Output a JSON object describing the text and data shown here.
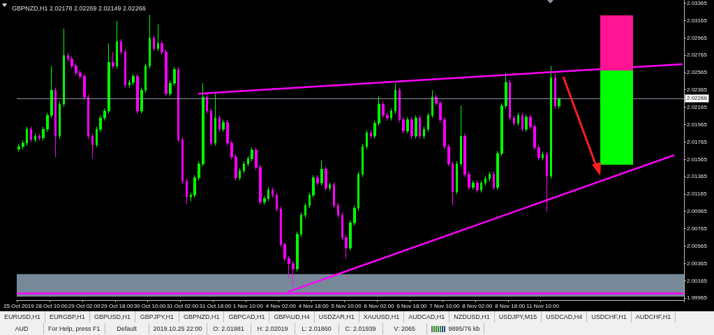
{
  "chart_data": {
    "type": "candlestick",
    "title": "GBPNZD,H1 2.02178 2.02269 2.02149 2.02266",
    "categories": [
      "25 Oct 2019",
      null,
      null,
      null,
      null,
      null,
      null,
      null,
      "28 Oct 10:00",
      null,
      null,
      null,
      null,
      null,
      null,
      null,
      "29 Oct 02:00",
      null,
      null,
      null,
      null,
      null,
      null,
      null,
      "29 Oct 18:00",
      null,
      null,
      null,
      null,
      null,
      null,
      null,
      "30 Oct 10:00",
      null,
      null,
      null,
      null,
      null,
      null,
      null,
      "31 Oct 02:00",
      null,
      null,
      null,
      null,
      null,
      null,
      null,
      "31 Oct 18:00",
      null,
      null,
      null,
      null,
      null,
      null,
      null,
      "1 Nov 10:00",
      null,
      null,
      null,
      null,
      null,
      null,
      null,
      "4 Nov 02:00",
      null,
      null,
      null,
      null,
      null,
      null,
      null,
      "4 Nov 18:00",
      null,
      null,
      null,
      null,
      null,
      null,
      null,
      "5 Nov 10:00",
      null,
      null,
      null,
      null,
      null,
      null,
      null,
      "6 Nov 02:00",
      null,
      null,
      null,
      null,
      null,
      null,
      null,
      "6 Nov 18:00",
      null,
      null,
      null,
      null,
      null,
      null,
      null,
      "7 Nov 10:00",
      null,
      null,
      null,
      null,
      null,
      null,
      null,
      "8 Nov 02:00",
      null,
      null,
      null,
      null,
      null,
      null,
      null,
      "8 Nov 18:00",
      null,
      null,
      null,
      null,
      null,
      null,
      null,
      "11 Nov 10:00",
      null,
      null,
      null,
      null,
      null,
      null,
      null,
      null,
      null,
      null,
      null,
      null,
      null,
      null,
      null,
      null,
      null,
      null,
      null,
      null,
      null,
      null,
      null,
      null,
      null,
      null,
      null,
      null,
      null,
      null,
      null,
      null,
      null,
      null
    ],
    "ylim": [
      1.9994,
      2.034
    ],
    "yticks": [
      2.03365,
      2.03165,
      2.02965,
      2.02765,
      2.02565,
      2.02365,
      2.02165,
      2.01965,
      2.01765,
      2.01565,
      2.01365,
      2.01165,
      2.00965,
      2.00765,
      2.00565,
      2.00365,
      2.00165,
      1.99965
    ],
    "grid": false,
    "marker": "none",
    "ref_lines": [
      {
        "axis": "y",
        "value": 2.02266,
        "label": "2.02266",
        "color": "#8a96a8"
      },
      {
        "axis": "y",
        "value": 2.0002,
        "color": "#ff00ff"
      }
    ],
    "bands": [
      {
        "axis": "y",
        "from": 1.9998,
        "to": 2.0024,
        "color": "#778899"
      }
    ],
    "series": [
      {
        "colors": [
          "#00ff00",
          "#00ff00",
          "#00ff00",
          "#ff00ff",
          "#00ff00",
          "#ff00ff",
          "#00ff00",
          "#00ff00",
          "#00ff00",
          "#ff00ff",
          "#00ff00",
          "#00ff00",
          "#ff00ff",
          "#ff00ff",
          "#ff00ff",
          "#ff00ff",
          "#ff00ff",
          "#ff00ff",
          "#ff00ff",
          "#00ff00",
          "#00ff00",
          "#00ff00",
          "#00ff00",
          "#ff00ff",
          "#00ff00",
          "#ff00ff",
          "#ff00ff",
          "#00ff00",
          "#00ff00",
          "#ff00ff",
          "#00ff00",
          "#00ff00",
          "#00ff00",
          "#ff00ff",
          "#00ff00",
          "#ff00ff",
          "#ff00ff",
          "#00ff00",
          "#00ff00",
          "#ff00ff",
          "#ff00ff",
          "#ff00ff",
          "#00ff00",
          "#00ff00",
          "#00ff00",
          "#00ff00",
          "#ff00ff",
          "#ff00ff",
          "#00ff00",
          "#ff00ff",
          "#00ff00",
          "#ff00ff",
          "#ff00ff",
          "#ff00ff",
          "#00ff00",
          "#00ff00",
          "#00ff00",
          "#00ff00",
          "#ff00ff",
          "#ff00ff",
          "#00ff00",
          "#00ff00",
          "#ff00ff",
          "#ff00ff",
          "#ff00ff",
          "#ff00ff",
          "#ff00ff",
          "#ff00ff",
          "#00ff00",
          "#00ff00",
          "#00ff00",
          "#00ff00",
          "#00ff00",
          "#ff00ff",
          "#00ff00",
          "#ff00ff",
          "#00ff00",
          "#ff00ff",
          "#ff00ff",
          "#ff00ff",
          "#ff00ff",
          "#00ff00",
          "#00ff00",
          "#00ff00",
          "#00ff00",
          "#00ff00",
          "#ff00ff",
          "#00ff00",
          "#00ff00",
          "#ff00ff",
          "#ff00ff",
          "#00ff00",
          "#00ff00",
          "#ff00ff",
          "#ff00ff",
          "#00ff00",
          "#ff00ff",
          "#00ff00",
          "#ff00ff",
          "#00ff00",
          "#00ff00",
          "#00ff00",
          "#ff00ff",
          "#ff00ff",
          "#ff00ff",
          "#ff00ff",
          "#ff00ff",
          "#00ff00",
          "#00ff00",
          "#ff00ff",
          "#ff00ff",
          "#00ff00",
          "#ff00ff",
          "#00ff00",
          "#00ff00",
          "#00ff00",
          "#ff00ff",
          "#00ff00",
          "#00ff00",
          "#00ff00",
          "#ff00ff",
          "#ff00ff",
          "#00ff00",
          "#ff00ff",
          "#00ff00",
          "#ff00ff",
          "#ff00ff",
          "#ff00ff",
          "#00ff00",
          "#ff00ff",
          "#00ff00",
          "#ff00ff",
          "#00ff00",
          null,
          null,
          null,
          null,
          null,
          null,
          null,
          null,
          null,
          null,
          null,
          null,
          null,
          null,
          null,
          null,
          null,
          null,
          null,
          null,
          null,
          null,
          null,
          null,
          null,
          null,
          null,
          null,
          null,
          null
        ],
        "ohlc": [
          [
            2.0168,
            2.0174,
            2.0165,
            2.0171
          ],
          [
            2.0171,
            2.0178,
            2.0168,
            2.0175
          ],
          [
            2.0175,
            2.0194,
            2.0172,
            2.0191
          ],
          [
            2.0191,
            2.0194,
            2.0176,
            2.0179
          ],
          [
            2.0179,
            2.0186,
            2.0176,
            2.0183
          ],
          [
            2.0183,
            2.0186,
            2.0178,
            2.0181
          ],
          [
            2.0181,
            2.0194,
            2.0178,
            2.0191
          ],
          [
            2.0191,
            2.021,
            2.0188,
            2.0207
          ],
          [
            2.0207,
            2.0264,
            2.0204,
            2.0236
          ],
          [
            2.0236,
            2.0239,
            2.0159,
            2.0183
          ],
          [
            2.0183,
            2.0223,
            2.018,
            2.022
          ],
          [
            2.022,
            2.0307,
            2.0217,
            2.0276
          ],
          [
            2.0276,
            2.0279,
            2.0269,
            2.0272
          ],
          [
            2.0272,
            2.0275,
            2.0261,
            2.0264
          ],
          [
            2.0264,
            2.0267,
            2.0253,
            2.0256
          ],
          [
            2.0256,
            2.0259,
            2.0249,
            2.0252
          ],
          [
            2.0252,
            2.0255,
            2.0225,
            2.0228
          ],
          [
            2.0228,
            2.0231,
            2.018,
            2.0183
          ],
          [
            2.0183,
            2.0186,
            2.0157,
            2.0173
          ],
          [
            2.0173,
            2.0194,
            2.017,
            2.0191
          ],
          [
            2.0191,
            2.0207,
            2.0188,
            2.0204
          ],
          [
            2.0204,
            2.0215,
            2.0201,
            2.0212
          ],
          [
            2.0212,
            2.029,
            2.0209,
            2.0268
          ],
          [
            2.0268,
            2.028,
            2.0261,
            2.0264
          ],
          [
            2.0264,
            2.0316,
            2.0261,
            2.0292
          ],
          [
            2.0292,
            2.0295,
            2.0277,
            2.028
          ],
          [
            2.028,
            2.0283,
            2.0239,
            2.0242
          ],
          [
            2.0242,
            2.0248,
            2.0239,
            2.0245
          ],
          [
            2.0245,
            2.0255,
            2.0242,
            2.0252
          ],
          [
            2.0252,
            2.0255,
            2.0209,
            2.0212
          ],
          [
            2.0212,
            2.0239,
            2.0209,
            2.0236
          ],
          [
            2.0236,
            2.0267,
            2.0233,
            2.0264
          ],
          [
            2.0264,
            2.0323,
            2.0261,
            2.0296
          ],
          [
            2.0296,
            2.0299,
            2.0281,
            2.0284
          ],
          [
            2.0284,
            2.0312,
            2.0281,
            2.029
          ],
          [
            2.029,
            2.0293,
            2.0277,
            2.028
          ],
          [
            2.028,
            2.0283,
            2.0229,
            2.0232
          ],
          [
            2.0232,
            2.0247,
            2.0229,
            2.0244
          ],
          [
            2.0244,
            2.0263,
            2.0241,
            2.026
          ],
          [
            2.026,
            2.0263,
            2.0176,
            2.0179
          ],
          [
            2.0179,
            2.0182,
            2.0128,
            2.0131
          ],
          [
            2.0131,
            2.0134,
            2.0105,
            2.0113
          ],
          [
            2.0113,
            2.0118,
            2.0108,
            2.0115
          ],
          [
            2.0115,
            2.0138,
            2.0112,
            2.0135
          ],
          [
            2.0135,
            2.0154,
            2.0132,
            2.0151
          ],
          [
            2.0151,
            2.0244,
            2.0148,
            2.0228
          ],
          [
            2.0228,
            2.0231,
            2.0209,
            2.0212
          ],
          [
            2.0212,
            2.0215,
            2.0172,
            2.0175
          ],
          [
            2.0175,
            2.0232,
            2.0172,
            2.0204
          ],
          [
            2.0204,
            2.0207,
            2.0188,
            2.0191
          ],
          [
            2.0191,
            2.0202,
            2.0188,
            2.0199
          ],
          [
            2.0199,
            2.0202,
            2.0172,
            2.0175
          ],
          [
            2.0175,
            2.0178,
            2.0156,
            2.0159
          ],
          [
            2.0159,
            2.0162,
            2.0132,
            2.0135
          ],
          [
            2.0135,
            2.0146,
            2.0132,
            2.0143
          ],
          [
            2.0143,
            2.0154,
            2.014,
            2.0151
          ],
          [
            2.0151,
            2.016,
            2.0148,
            2.0157
          ],
          [
            2.0157,
            2.017,
            2.0154,
            2.0167
          ],
          [
            2.0167,
            2.017,
            2.0144,
            2.0147
          ],
          [
            2.0147,
            2.015,
            2.0104,
            2.0107
          ],
          [
            2.0107,
            2.0114,
            2.0104,
            2.0111
          ],
          [
            2.0111,
            2.0124,
            2.0108,
            2.0121
          ],
          [
            2.0121,
            2.0124,
            2.0112,
            2.0115
          ],
          [
            2.0115,
            2.0118,
            2.0096,
            2.0099
          ],
          [
            2.0099,
            2.0102,
            2.0055,
            2.0058
          ],
          [
            2.0058,
            2.0061,
            2.0039,
            2.0042
          ],
          [
            2.0042,
            2.0045,
            2.002,
            2.0036
          ],
          [
            2.0036,
            2.0039,
            2.001,
            2.003
          ],
          [
            2.003,
            2.0073,
            2.0027,
            2.007
          ],
          [
            2.007,
            2.0095,
            2.0067,
            2.0092
          ],
          [
            2.0092,
            2.0106,
            2.0089,
            2.0103
          ],
          [
            2.0103,
            2.0118,
            2.01,
            2.0115
          ],
          [
            2.0115,
            2.0138,
            2.0112,
            2.0135
          ],
          [
            2.0135,
            2.0138,
            2.0126,
            2.0129
          ],
          [
            2.0129,
            2.0155,
            2.0126,
            2.0145
          ],
          [
            2.0145,
            2.0148,
            2.012,
            2.0123
          ],
          [
            2.0123,
            2.013,
            2.012,
            2.0127
          ],
          [
            2.0127,
            2.013,
            2.01,
            2.0103
          ],
          [
            2.0103,
            2.0106,
            2.0089,
            2.0092
          ],
          [
            2.0092,
            2.0095,
            2.0063,
            2.0066
          ],
          [
            2.0066,
            2.0069,
            2.0042,
            2.0054
          ],
          [
            2.0054,
            2.0086,
            2.0051,
            2.0083
          ],
          [
            2.0083,
            2.0103,
            2.008,
            2.01
          ],
          [
            2.01,
            2.0142,
            2.0097,
            2.0139
          ],
          [
            2.0139,
            2.0174,
            2.0136,
            2.0171
          ],
          [
            2.0171,
            2.019,
            2.0168,
            2.0187
          ],
          [
            2.0187,
            2.019,
            2.018,
            2.0183
          ],
          [
            2.0183,
            2.0201,
            2.018,
            2.0198
          ],
          [
            2.0198,
            2.0229,
            2.0195,
            2.022
          ],
          [
            2.022,
            2.0223,
            2.0204,
            2.0207
          ],
          [
            2.0207,
            2.021,
            2.0201,
            2.0204
          ],
          [
            2.0204,
            2.0215,
            2.0201,
            2.0212
          ],
          [
            2.0212,
            2.0244,
            2.0209,
            2.0236
          ],
          [
            2.0236,
            2.0239,
            2.0199,
            2.0202
          ],
          [
            2.0202,
            2.0205,
            2.0186,
            2.0189
          ],
          [
            2.0189,
            2.0205,
            2.0186,
            2.0202
          ],
          [
            2.0202,
            2.0205,
            2.018,
            2.0183
          ],
          [
            2.0183,
            2.0207,
            2.018,
            2.0204
          ],
          [
            2.0204,
            2.0207,
            2.018,
            2.0183
          ],
          [
            2.0183,
            2.0194,
            2.018,
            2.0191
          ],
          [
            2.0191,
            2.021,
            2.0188,
            2.0207
          ],
          [
            2.0207,
            2.0236,
            2.0204,
            2.0228
          ],
          [
            2.0228,
            2.0231,
            2.0218,
            2.0221
          ],
          [
            2.0221,
            2.0224,
            2.0199,
            2.0202
          ],
          [
            2.0202,
            2.0205,
            2.0168,
            2.0171
          ],
          [
            2.0171,
            2.0174,
            2.0148,
            2.0151
          ],
          [
            2.0151,
            2.0154,
            2.0103,
            2.0119
          ],
          [
            2.0119,
            2.0154,
            2.0116,
            2.0151
          ],
          [
            2.0151,
            2.0218,
            2.0148,
            2.0183
          ],
          [
            2.0183,
            2.0186,
            2.0136,
            2.0139
          ],
          [
            2.0139,
            2.0142,
            2.0121,
            2.0124
          ],
          [
            2.0124,
            2.0132,
            2.0121,
            2.0129
          ],
          [
            2.0129,
            2.0132,
            2.0118,
            2.0121
          ],
          [
            2.0121,
            2.0132,
            2.0118,
            2.0129
          ],
          [
            2.0129,
            2.0137,
            2.0126,
            2.0134
          ],
          [
            2.0134,
            2.0142,
            2.0131,
            2.0139
          ],
          [
            2.0139,
            2.0142,
            2.0121,
            2.0124
          ],
          [
            2.0124,
            2.0166,
            2.0121,
            2.0163
          ],
          [
            2.0163,
            2.0221,
            2.016,
            2.0218
          ],
          [
            2.0218,
            2.0256,
            2.0215,
            2.0245
          ],
          [
            2.0245,
            2.0248,
            2.0201,
            2.0204
          ],
          [
            2.0204,
            2.0207,
            2.0195,
            2.0198
          ],
          [
            2.0198,
            2.021,
            2.0195,
            2.0207
          ],
          [
            2.0207,
            2.021,
            2.0188,
            2.0191
          ],
          [
            2.0191,
            2.0208,
            2.0188,
            2.0205
          ],
          [
            2.0205,
            2.0208,
            2.0191,
            2.0194
          ],
          [
            2.0194,
            2.0197,
            2.0167,
            2.017
          ],
          [
            2.017,
            2.0173,
            2.0155,
            2.0158
          ],
          [
            2.0158,
            2.0165,
            2.0155,
            2.0162
          ],
          [
            2.0162,
            2.0165,
            2.0096,
            2.0137
          ],
          [
            2.0137,
            2.0264,
            2.0134,
            2.025
          ],
          [
            2.025,
            2.0256,
            2.0215,
            2.0218
          ],
          [
            2.02178,
            2.02269,
            2.02149,
            2.02266
          ],
          null,
          null,
          null,
          null,
          null,
          null,
          null,
          null,
          null,
          null,
          null,
          null,
          null,
          null,
          null,
          null,
          null,
          null,
          null,
          null,
          null,
          null,
          null,
          null,
          null,
          null,
          null,
          null,
          null,
          null
        ]
      },
      {
        "type": "line",
        "color": "#ff00ff",
        "values": [
          null,
          null,
          null,
          null,
          null,
          null,
          null,
          null,
          null,
          null,
          null,
          null,
          null,
          null,
          null,
          null,
          null,
          null,
          null,
          null,
          null,
          null,
          null,
          null,
          null,
          null,
          null,
          null,
          null,
          null,
          null,
          null,
          null,
          null,
          null,
          null,
          null,
          null,
          null,
          null,
          null,
          null,
          null,
          null,
          2.0232,
          null,
          null,
          null,
          null,
          null,
          null,
          null,
          null,
          null,
          null,
          null,
          null,
          null,
          null,
          null,
          null,
          null,
          null,
          null,
          null,
          null,
          null,
          null,
          null,
          null,
          null,
          null,
          null,
          null,
          null,
          null,
          null,
          null,
          null,
          null,
          null,
          null,
          null,
          null,
          null,
          null,
          null,
          null,
          null,
          null,
          null,
          null,
          null,
          null,
          null,
          null,
          null,
          null,
          null,
          null,
          null,
          null,
          null,
          null,
          null,
          null,
          null,
          null,
          null,
          null,
          null,
          null,
          null,
          null,
          null,
          null,
          null,
          null,
          null,
          null,
          null,
          null,
          null,
          null,
          null,
          null,
          null,
          null,
          null,
          null,
          null,
          null,
          null,
          null,
          null,
          null,
          null,
          null,
          null,
          null,
          null,
          null,
          null,
          null,
          null,
          null,
          null,
          null,
          null,
          null,
          null,
          null,
          null,
          null,
          null,
          null,
          null,
          null,
          null,
          null,
          null,
          null,
          2.0266
        ]
      },
      {
        "type": "line",
        "color": "#ff00ff",
        "values": [
          null,
          null,
          null,
          null,
          null,
          null,
          null,
          null,
          null,
          null,
          null,
          null,
          null,
          null,
          null,
          null,
          null,
          null,
          null,
          null,
          null,
          null,
          null,
          null,
          null,
          null,
          null,
          null,
          null,
          null,
          null,
          null,
          null,
          null,
          null,
          null,
          null,
          null,
          null,
          null,
          null,
          null,
          null,
          null,
          null,
          null,
          null,
          null,
          null,
          null,
          null,
          null,
          null,
          null,
          null,
          null,
          null,
          null,
          null,
          null,
          null,
          null,
          null,
          null,
          null,
          null,
          2.0004,
          null,
          null,
          null,
          null,
          null,
          null,
          null,
          null,
          null,
          null,
          null,
          null,
          null,
          null,
          null,
          null,
          null,
          null,
          null,
          null,
          null,
          null,
          null,
          null,
          null,
          null,
          null,
          null,
          null,
          null,
          null,
          null,
          null,
          null,
          null,
          null,
          null,
          null,
          null,
          null,
          null,
          null,
          null,
          null,
          null,
          null,
          null,
          null,
          null,
          null,
          null,
          null,
          null,
          null,
          null,
          null,
          null,
          null,
          null,
          null,
          null,
          null,
          null,
          null,
          null,
          null,
          null,
          null,
          null,
          null,
          null,
          null,
          null,
          null,
          null,
          null,
          null,
          null,
          null,
          null,
          null,
          null,
          null,
          null,
          null,
          null,
          null,
          null,
          null,
          null,
          null,
          null,
          null,
          2.0161,
          null,
          null
        ]
      }
    ],
    "annotations": [
      "EURUSD,H1",
      "EURGBP,H1",
      "GBPUSD,H1",
      "GBPJPY,H1",
      "GBPNZD,H1",
      "GBPCAD,H1",
      "GBPAUD,H4",
      "USDZAR,H1",
      "XAUUSD,H1",
      "AUDCAD,H1",
      "NZDUSD,H1",
      "USDJPY,M15",
      "USDCAD,H4",
      "USDCHF,H1",
      "AUDCHF,H1",
      "AUD",
      "For Help, press F1",
      "Default",
      "2019.10.25 22:00",
      "O: 2.01981",
      "H: 2.02019",
      "L: 2.01860",
      "C: 2.01939",
      "V: 2065",
      "9895/76 kb"
    ]
  }
}
